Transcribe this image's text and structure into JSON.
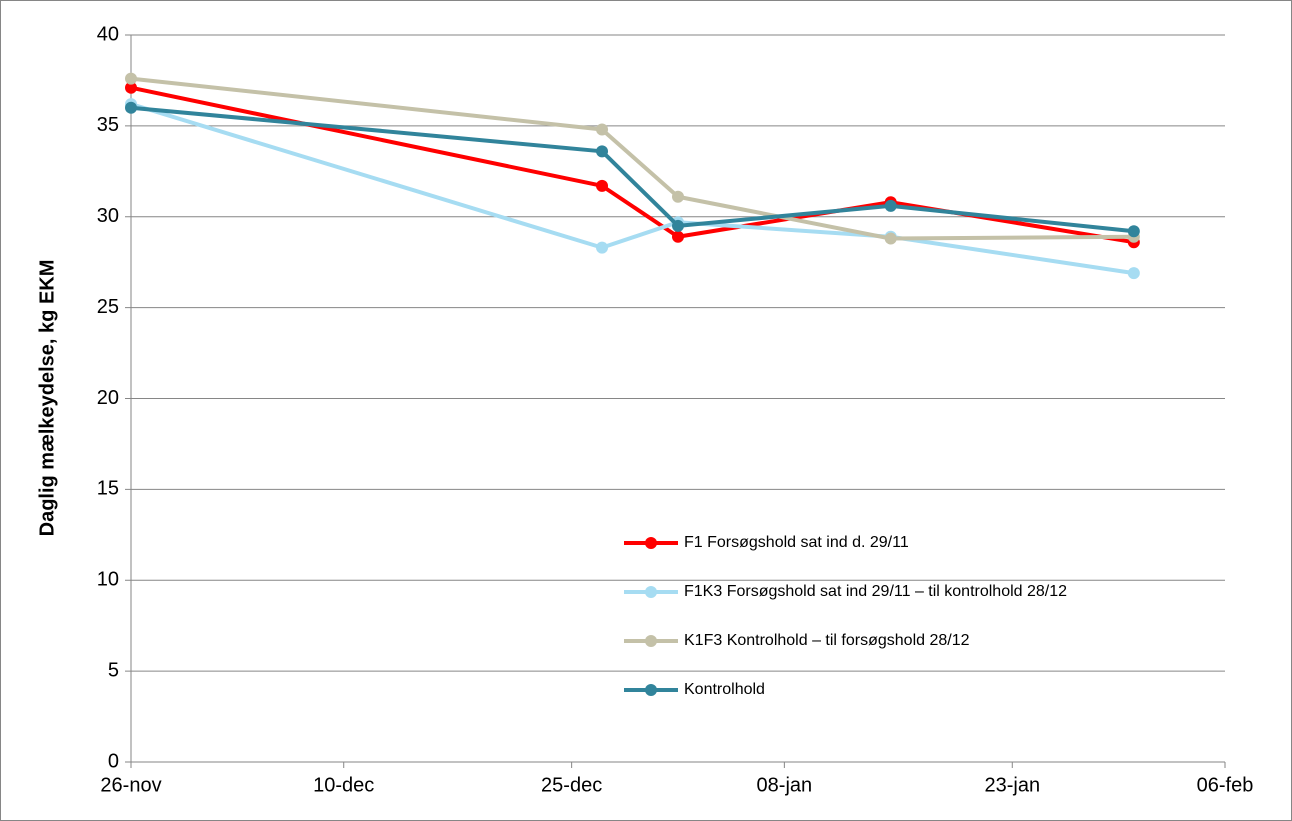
{
  "chart_data": {
    "type": "line",
    "y_label": "Daglig mælkeydelse, kg EKM",
    "x": [
      0,
      31,
      36,
      50,
      66
    ],
    "xlim": [
      0,
      72
    ],
    "xticks": [
      {
        "value": 0,
        "label": "26-nov"
      },
      {
        "value": 14,
        "label": "10-dec"
      },
      {
        "value": 29,
        "label": "25-dec"
      },
      {
        "value": 43,
        "label": "08-jan"
      },
      {
        "value": 58,
        "label": "23-jan"
      },
      {
        "value": 72,
        "label": "06-feb"
      }
    ],
    "ylim": [
      0,
      40
    ],
    "yticks": [
      0,
      5,
      10,
      15,
      20,
      25,
      30,
      35,
      40
    ],
    "grid": true,
    "series": [
      {
        "name": "F1 Forsøgshold sat ind d. 29/11",
        "color": "#ff0000",
        "values": [
          37.1,
          31.7,
          28.9,
          30.8,
          28.6
        ]
      },
      {
        "name": "F1K3 Forsøgshold sat ind 29/11 – til kontrolhold 28/12",
        "color": "#a6dcf2",
        "values": [
          36.2,
          28.3,
          29.7,
          28.9,
          26.9
        ]
      },
      {
        "name": "K1F3 Kontrolhold – til forsøgshold 28/12",
        "color": "#c4c1a8",
        "values": [
          37.6,
          34.8,
          31.1,
          28.8,
          28.9
        ]
      },
      {
        "name": "Kontrolhold",
        "color": "#31849b",
        "values": [
          36.0,
          33.6,
          29.5,
          30.6,
          29.2
        ]
      }
    ]
  }
}
